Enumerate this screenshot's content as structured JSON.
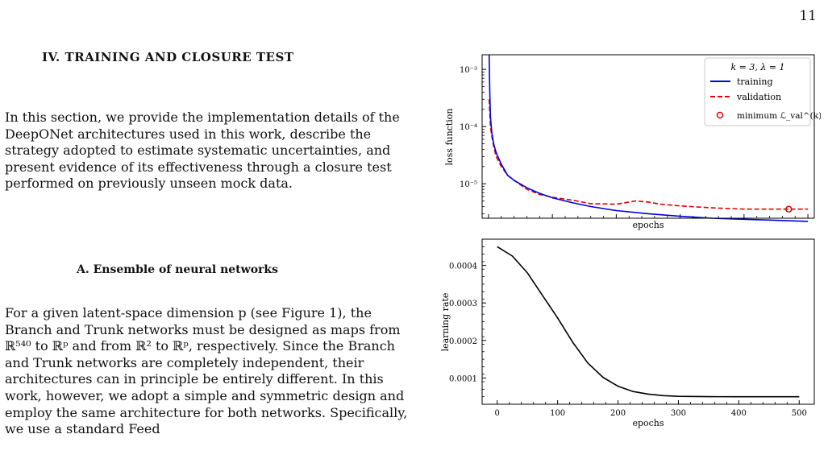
{
  "page_number": "11",
  "section": {
    "heading": "IV.    TRAINING AND CLOSURE TEST",
    "paragraph": "In this section, we provide the implementation details of the DeepONet architectures used in this work, describe the strategy adopted to estimate systematic uncertainties, and present evidence of its effectiveness through a closure test performed on previously unseen mock data."
  },
  "subsection": {
    "heading": "A.    Ensemble of neural networks",
    "paragraph": "For a given latent-space dimension p (see Figure 1), the Branch and Trunk networks must be designed as maps from ℝ⁵⁴⁰ to ℝᵖ and from ℝ² to ℝᵖ, respectively. Since the Branch and Trunk networks are completely independent, their architectures can in principle be entirely different. In this work, however, we adopt a simple and symmetric design and employ the same architecture for both networks. Specifically, we use a standard Feed"
  },
  "chart_data": [
    {
      "type": "line",
      "xlabel": "epochs",
      "ylabel": "loss function",
      "yscale": "log",
      "xlim": [
        -10,
        510
      ],
      "ylim": [
        2.5e-06,
        0.0018
      ],
      "y_ticks": [
        1e-05,
        0.0001,
        0.001
      ],
      "y_tick_labels": [
        "10⁻⁵",
        "10⁻⁴",
        "10⁻³"
      ],
      "x_tick_labels_visible": false,
      "legend": {
        "placement": "top-right",
        "title": "k = 3, λ = 1",
        "entries": [
          "training",
          "validation",
          "minimum ℒ_val^(k)"
        ]
      },
      "series": [
        {
          "name": "training",
          "color": "#0000dd",
          "style": "solid",
          "x": [
            1,
            2,
            3,
            5,
            8,
            12,
            20,
            30,
            40,
            60,
            80,
            100,
            130,
            160,
            200,
            250,
            300,
            350,
            400,
            450,
            500
          ],
          "y": [
            0.0018,
            0.0004,
            0.00015,
            8e-05,
            5e-05,
            3.5e-05,
            2.2e-05,
            1.4e-05,
            1.15e-05,
            8.5e-06,
            6.8e-06,
            5.7e-06,
            4.7e-06,
            4e-06,
            3.4e-06,
            3e-06,
            2.7e-06,
            2.5e-06,
            2.4e-06,
            2.3e-06,
            2.2e-06
          ]
        },
        {
          "name": "validation",
          "color": "#e00000",
          "style": "dashed",
          "x": [
            1,
            2,
            3,
            5,
            8,
            12,
            20,
            30,
            40,
            60,
            80,
            100,
            130,
            160,
            200,
            230,
            250,
            270,
            300,
            350,
            400,
            450,
            500
          ],
          "y": [
            0.0003,
            0.00018,
            0.0001,
            7e-05,
            4.5e-05,
            3e-05,
            2e-05,
            1.4e-05,
            1.15e-05,
            8e-06,
            6.5e-06,
            5.8e-06,
            5.2e-06,
            4.5e-06,
            4.4e-06,
            5e-06,
            4.8e-06,
            4.4e-06,
            4.1e-06,
            3.8e-06,
            3.6e-06,
            3.6e-06,
            3.6e-06
          ]
        }
      ],
      "marker": {
        "x": 470,
        "y": 3.6e-06,
        "label": "minimum ℒ_val^(k)"
      }
    },
    {
      "type": "line",
      "xlabel": "epochs",
      "ylabel": "learning rate",
      "xlim": [
        -25,
        525
      ],
      "ylim": [
        3e-05,
        0.00047
      ],
      "x_ticks": [
        0,
        100,
        200,
        300,
        400,
        500
      ],
      "y_ticks": [
        0.0001,
        0.0002,
        0.0003,
        0.0004
      ],
      "y_tick_labels": [
        "0.0001",
        "0.0002",
        "0.0003",
        "0.0004"
      ],
      "series": [
        {
          "name": "learning rate",
          "color": "#000000",
          "style": "solid",
          "x": [
            0,
            25,
            50,
            75,
            100,
            125,
            150,
            175,
            200,
            225,
            250,
            275,
            300,
            350,
            400,
            450,
            500
          ],
          "y": [
            0.00045,
            0.000425,
            0.00038,
            0.00032,
            0.00026,
            0.000195,
            0.00014,
            0.000102,
            7.8e-05,
            6.4e-05,
            5.7e-05,
            5.3e-05,
            5.1e-05,
            5.02e-05,
            5e-05,
            5e-05,
            5e-05
          ]
        }
      ]
    }
  ]
}
